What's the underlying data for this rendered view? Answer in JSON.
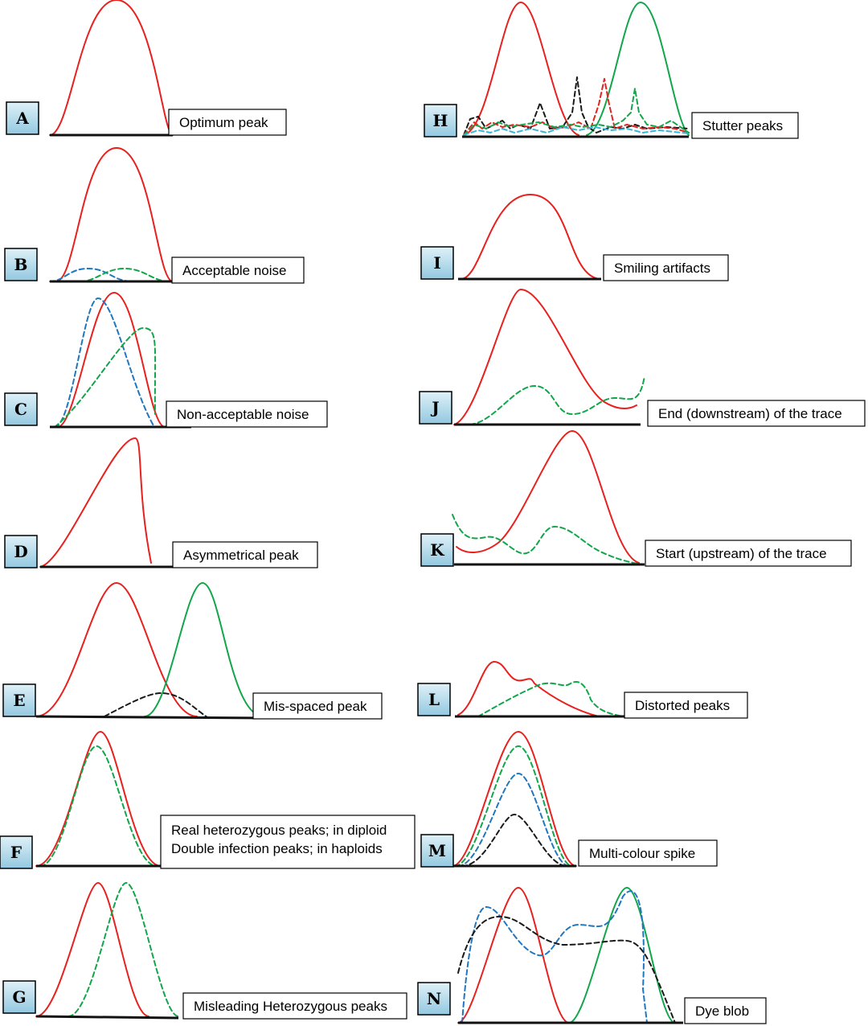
{
  "colors": {
    "red": "#e8201e",
    "green": "#12a64a",
    "blue": "#1f77c0",
    "black": "#1a1a1a",
    "cyan": "#38b6d8",
    "baseline": "#111111",
    "letter_box_top": "#d9eef7",
    "letter_box_bottom": "#9ccde3"
  },
  "panels": [
    {
      "id": "A",
      "letter": "A",
      "labels": [
        "Optimum peak"
      ]
    },
    {
      "id": "B",
      "letter": "B",
      "labels": [
        "Acceptable noise"
      ]
    },
    {
      "id": "C",
      "letter": "C",
      "labels": [
        "Non-acceptable noise"
      ]
    },
    {
      "id": "D",
      "letter": "D",
      "labels": [
        "Asymmetrical peak"
      ]
    },
    {
      "id": "E",
      "letter": "E",
      "labels": [
        "Mis-spaced peak"
      ]
    },
    {
      "id": "F",
      "letter": "F",
      "labels": [
        "Real heterozygous peaks; in diploid",
        "Double infection peaks; in haploids"
      ]
    },
    {
      "id": "G",
      "letter": "G",
      "labels": [
        "Misleading Heterozygous peaks"
      ]
    },
    {
      "id": "H",
      "letter": "H",
      "labels": [
        "Stutter peaks"
      ]
    },
    {
      "id": "I",
      "letter": "I",
      "labels": [
        "Smiling artifacts"
      ]
    },
    {
      "id": "J",
      "letter": "J",
      "labels": [
        "End (downstream) of the trace"
      ]
    },
    {
      "id": "K",
      "letter": "K",
      "labels": [
        "Start (upstream) of the trace"
      ]
    },
    {
      "id": "L",
      "letter": "L",
      "labels": [
        "Distorted peaks"
      ]
    },
    {
      "id": "M",
      "letter": "M",
      "labels": [
        "Multi-colour spike"
      ]
    },
    {
      "id": "N",
      "letter": "N",
      "labels": [
        "Dye blob"
      ]
    }
  ]
}
